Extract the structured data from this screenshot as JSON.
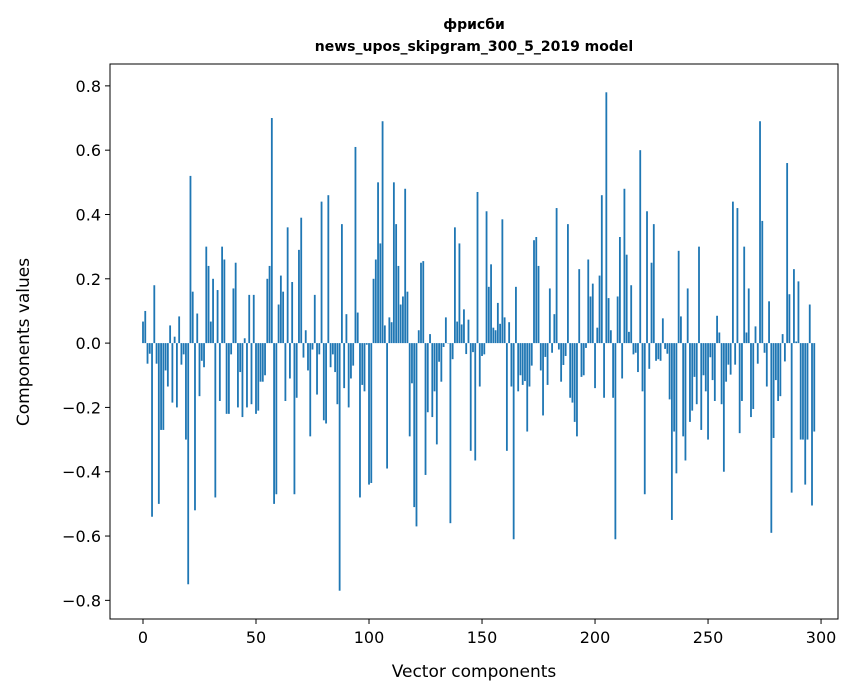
{
  "chart_data": {
    "type": "bar",
    "title": "фрисби",
    "subtitle": "news_upos_skipgram_300_5_2019 model",
    "xlabel": "Vector components",
    "ylabel": "Components values",
    "xlim": [
      -14.6,
      307.5
    ],
    "ylim": [
      -0.858,
      0.868
    ],
    "xticks": [
      0,
      50,
      100,
      150,
      200,
      250,
      300
    ],
    "xtick_labels": [
      "0",
      "50",
      "100",
      "150",
      "200",
      "250",
      "300"
    ],
    "yticks": [
      -0.8,
      -0.6,
      -0.4,
      -0.2,
      0.0,
      0.2,
      0.4,
      0.6,
      0.8
    ],
    "ytick_labels": [
      "−0.8",
      "−0.6",
      "−0.4",
      "−0.2",
      "0.0",
      "0.2",
      "0.4",
      "0.6",
      "0.8"
    ],
    "grid": false,
    "bar_color": "#1f77b4",
    "values": [
      0.067,
      0.1,
      -0.064,
      -0.033,
      -0.54,
      0.18,
      -0.064,
      -0.5,
      -0.27,
      -0.27,
      -0.085,
      -0.135,
      0.055,
      -0.185,
      0.02,
      -0.2,
      0.083,
      -0.067,
      -0.035,
      -0.3,
      -0.75,
      0.52,
      0.16,
      -0.52,
      0.092,
      -0.165,
      -0.055,
      -0.075,
      0.3,
      0.24,
      0.067,
      0.2,
      -0.48,
      0.165,
      -0.18,
      0.3,
      0.26,
      -0.22,
      -0.22,
      -0.035,
      0.17,
      0.25,
      -0.2,
      -0.09,
      -0.23,
      0.015,
      -0.2,
      0.15,
      -0.19,
      0.15,
      -0.22,
      -0.21,
      -0.12,
      -0.12,
      -0.1,
      0.2,
      0.24,
      0.7,
      -0.5,
      -0.47,
      0.12,
      0.21,
      0.16,
      -0.18,
      0.36,
      -0.11,
      0.19,
      -0.47,
      -0.17,
      0.29,
      0.39,
      -0.045,
      0.04,
      -0.085,
      -0.29,
      -0.02,
      0.15,
      -0.16,
      -0.035,
      0.44,
      -0.24,
      -0.25,
      0.46,
      -0.075,
      -0.035,
      -0.09,
      -0.19,
      -0.77,
      0.37,
      -0.14,
      0.09,
      -0.2,
      -0.11,
      -0.07,
      0.61,
      0.095,
      -0.48,
      -0.13,
      -0.15,
      -0.005,
      -0.44,
      -0.435,
      0.2,
      0.26,
      0.5,
      0.31,
      0.69,
      0.055,
      -0.39,
      0.08,
      0.065,
      0.5,
      0.37,
      0.24,
      0.12,
      0.145,
      0.48,
      0.16,
      -0.29,
      -0.125,
      -0.51,
      -0.57,
      0.04,
      0.25,
      0.255,
      -0.41,
      -0.215,
      0.028,
      -0.23,
      -0.15,
      -0.315,
      -0.058,
      -0.12,
      -0.012,
      0.08,
      0.0,
      -0.56,
      -0.05,
      0.36,
      0.067,
      0.31,
      0.058,
      0.105,
      -0.034,
      0.073,
      -0.335,
      -0.028,
      -0.365,
      0.47,
      -0.135,
      -0.04,
      -0.035,
      0.41,
      0.175,
      0.245,
      0.048,
      0.04,
      0.125,
      0.06,
      0.385,
      0.08,
      -0.335,
      0.065,
      -0.135,
      -0.61,
      0.175,
      -0.15,
      -0.1,
      -0.13,
      -0.118,
      -0.275,
      -0.135,
      -0.07,
      0.32,
      0.33,
      0.24,
      -0.085,
      -0.225,
      -0.043,
      -0.13,
      0.17,
      -0.03,
      0.09,
      0.42,
      -0.02,
      -0.12,
      -0.068,
      -0.04,
      0.37,
      -0.17,
      -0.185,
      -0.245,
      -0.29,
      0.23,
      -0.105,
      -0.1,
      -0.015,
      0.26,
      0.145,
      0.185,
      -0.14,
      0.048,
      0.21,
      0.46,
      -0.17,
      0.78,
      0.14,
      0.04,
      -0.17,
      -0.61,
      0.145,
      0.33,
      -0.11,
      0.48,
      0.275,
      0.035,
      0.18,
      -0.035,
      -0.03,
      -0.09,
      0.6,
      -0.15,
      -0.47,
      0.41,
      -0.08,
      0.25,
      0.37,
      -0.055,
      -0.05,
      -0.055,
      0.077,
      -0.018,
      -0.033,
      -0.175,
      -0.55,
      -0.275,
      -0.405,
      0.287,
      0.083,
      -0.29,
      -0.365,
      0.17,
      -0.245,
      -0.21,
      -0.105,
      -0.19,
      0.3,
      -0.27,
      -0.1,
      -0.15,
      -0.3,
      -0.044,
      -0.115,
      -0.18,
      0.085,
      0.033,
      -0.19,
      -0.4,
      -0.12,
      -0.067,
      -0.098,
      0.44,
      -0.067,
      0.42,
      -0.28,
      -0.18,
      0.3,
      0.033,
      0.17,
      -0.23,
      -0.205,
      0.052,
      -0.064,
      0.69,
      0.38,
      -0.03,
      -0.135,
      0.13,
      -0.59,
      -0.295,
      -0.115,
      -0.18,
      -0.165,
      0.028,
      -0.057,
      0.56,
      0.152,
      -0.465,
      0.23,
      0.005,
      0.192,
      -0.3,
      -0.3,
      -0.44,
      -0.3,
      0.12,
      -0.505,
      -0.275
    ]
  }
}
